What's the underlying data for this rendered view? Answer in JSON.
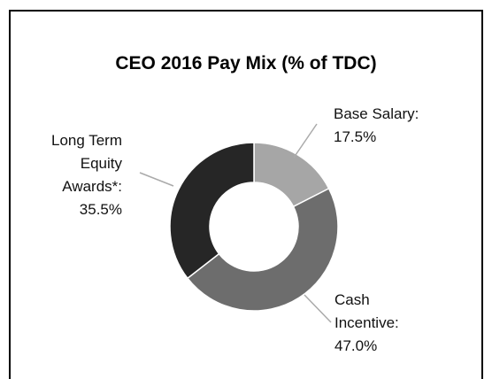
{
  "chart_data": {
    "type": "donut",
    "title": "CEO 2016 Pay Mix (% of TDC)",
    "categories": [
      "Base Salary:",
      "Cash Incentive:",
      "Long Term Equity Awards*:"
    ],
    "values": [
      17.5,
      47.0,
      35.5
    ],
    "value_labels": [
      "17.5%",
      "47.0%",
      "35.5%"
    ],
    "colors": [
      "#a6a6a6",
      "#6d6d6d",
      "#262626"
    ]
  }
}
